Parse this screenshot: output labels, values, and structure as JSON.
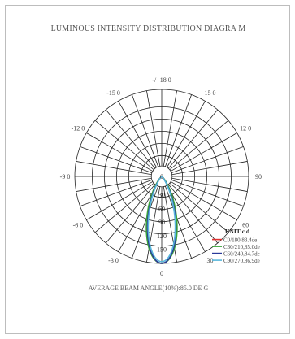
{
  "title": "LUMINOUS INTENSITY DISTRIBUTION DIAGRA   M",
  "footer": "AVERAGE BEAM ANGLE(10%):85.0 DE  G",
  "chart_data": {
    "type": "polar",
    "angle_labels": [
      {
        "text": "-/+18  0",
        "angle": 180
      },
      {
        "text": "-15 0",
        "angle": -150
      },
      {
        "text": "15 0",
        "angle": 150
      },
      {
        "text": "-12 0",
        "angle": -120
      },
      {
        "text": "12 0",
        "angle": 120
      },
      {
        "text": "-9 0",
        "angle": -90
      },
      {
        "text": "90",
        "angle": 90
      },
      {
        "text": "-6 0",
        "angle": -60
      },
      {
        "text": "60",
        "angle": 60
      },
      {
        "text": "-3 0",
        "angle": -30
      },
      {
        "text": "30",
        "angle": 30
      },
      {
        "text": "0",
        "angle": 0
      }
    ],
    "radial_ticks": [
      {
        "text": "0",
        "value": 0
      },
      {
        "text": "30",
        "value": 30
      },
      {
        "text": "60",
        "value": 60
      },
      {
        "text": "90",
        "value": 90
      },
      {
        "text": "120",
        "value": 120
      },
      {
        "text": "150",
        "value": 150
      }
    ],
    "r_max": 150,
    "legend": {
      "title": "UNIT:c d",
      "position": "bottom-right",
      "entries": [
        {
          "label": "C0/180,83.4de",
          "color": "#e03030"
        },
        {
          "label": "C30/210,85.0de",
          "color": "#3aa53a"
        },
        {
          "label": "C60/240,84.7de",
          "color": "#2a3a9a"
        },
        {
          "label": "C90/270,86.9de",
          "color": "#5ab8dc"
        }
      ]
    },
    "series": [
      {
        "name": "C0/180,83.4de",
        "color": "#e03030",
        "peak": 150,
        "half_angle": 18.5
      },
      {
        "name": "C30/210,85.0de",
        "color": "#3aa53a",
        "peak": 150,
        "half_angle": 19.0
      },
      {
        "name": "C60/240,84.7de",
        "color": "#2a3a9a",
        "peak": 150,
        "half_angle": 17.5
      },
      {
        "name": "C90/270,86.9de",
        "color": "#5ab8dc",
        "peak": 147,
        "half_angle": 17.0
      }
    ]
  }
}
